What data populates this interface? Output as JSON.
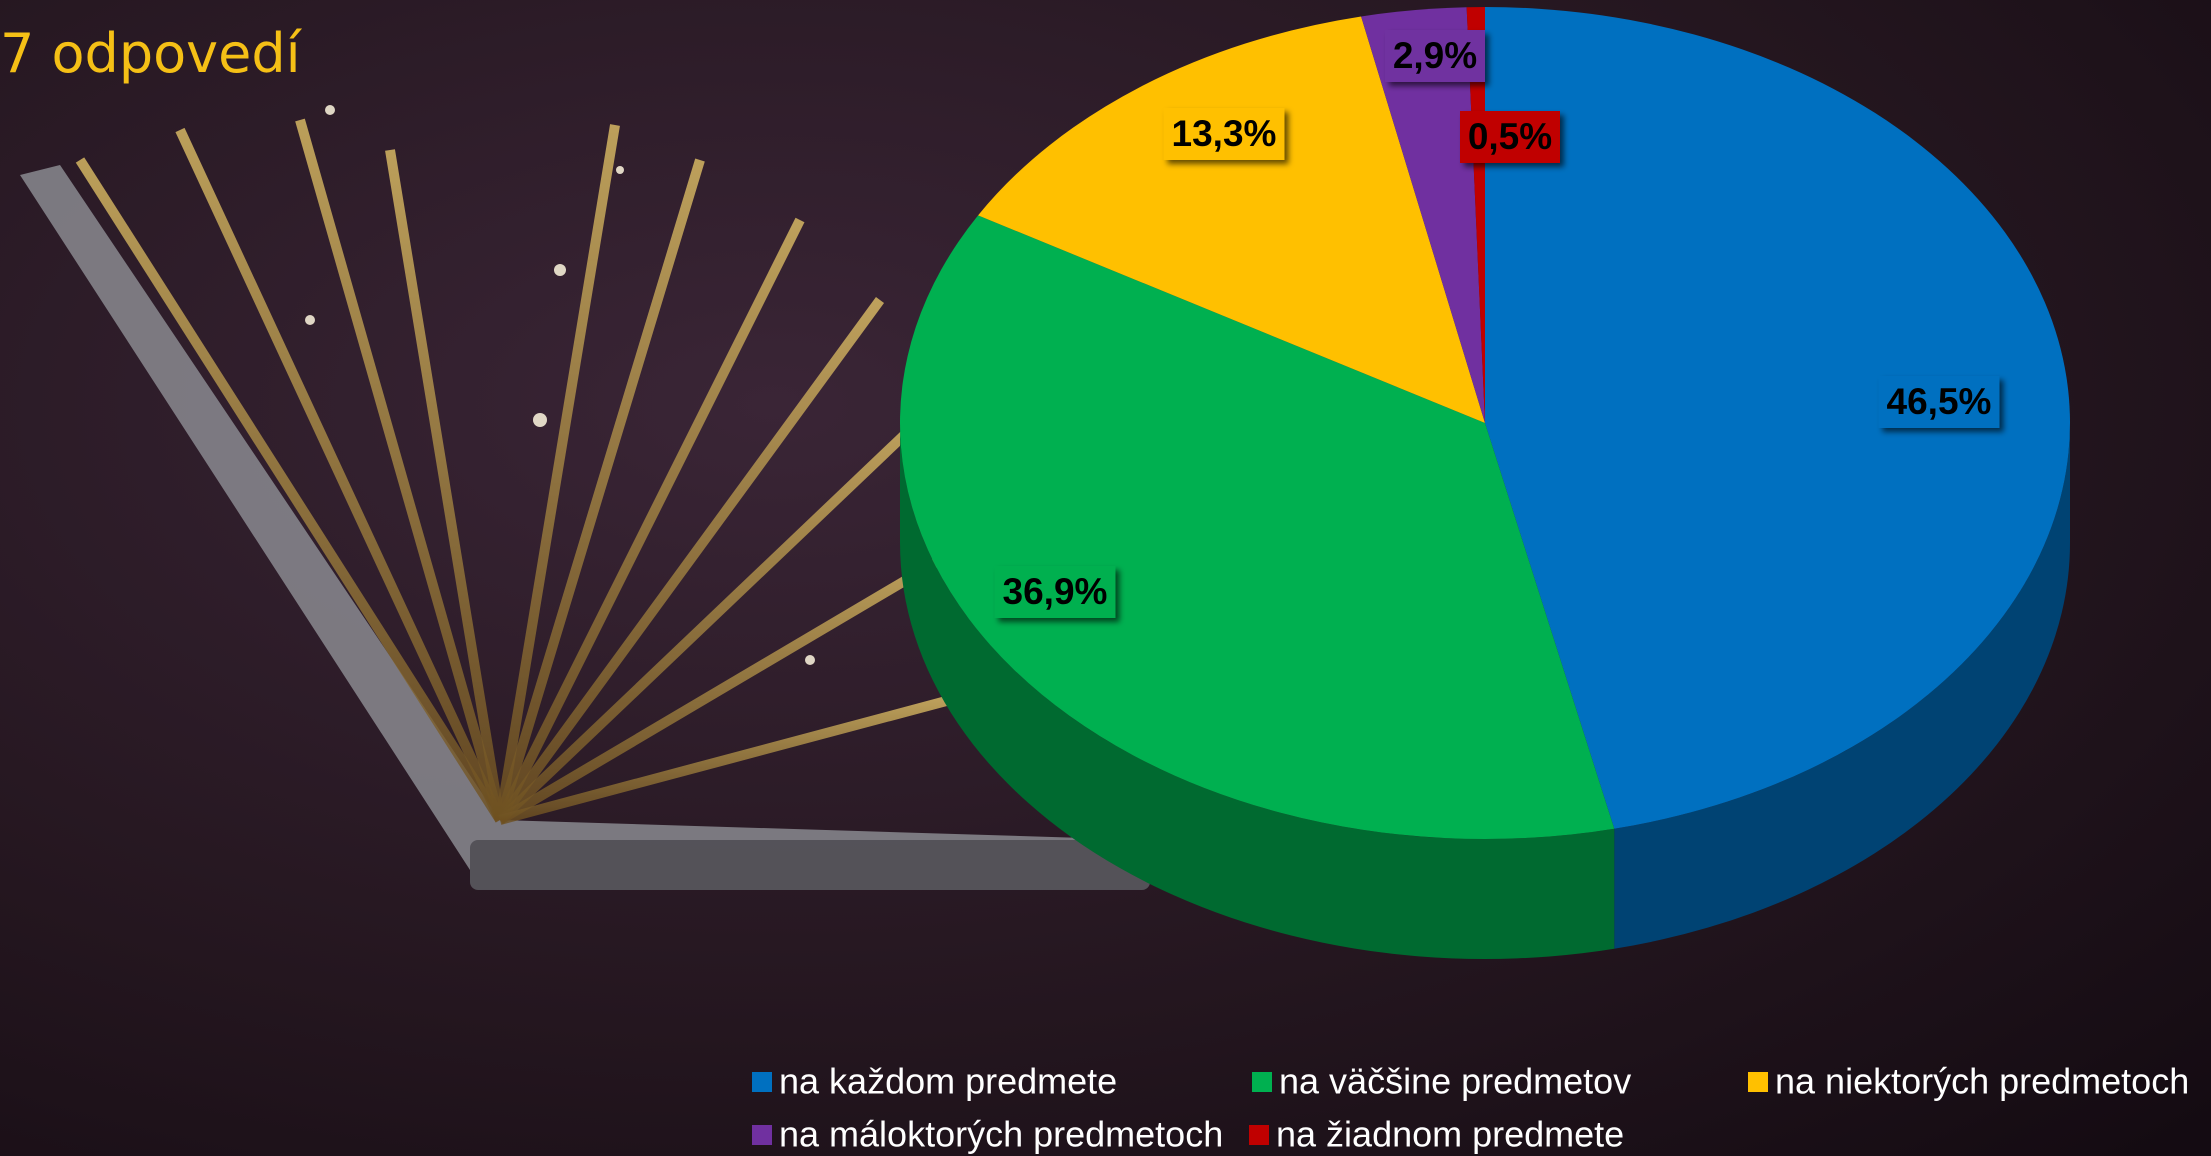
{
  "chart_data": {
    "type": "pie",
    "title": "7 odpovedí",
    "categories": [
      "na každom predmete",
      "na väčšine predmetov",
      "na niektorých predmetoch",
      "na máloktorých predmetoch",
      "na žiadnom predmete"
    ],
    "values": [
      46.5,
      36.9,
      13.3,
      2.9,
      0.5
    ],
    "value_labels": [
      "46,5%",
      "36,9%",
      "13,3%",
      "2,9%",
      "0,5%"
    ],
    "colors": [
      "#0070c0",
      "#00b050",
      "#ffc000",
      "#7030a0",
      "#c00000"
    ],
    "legend": "bottom"
  }
}
